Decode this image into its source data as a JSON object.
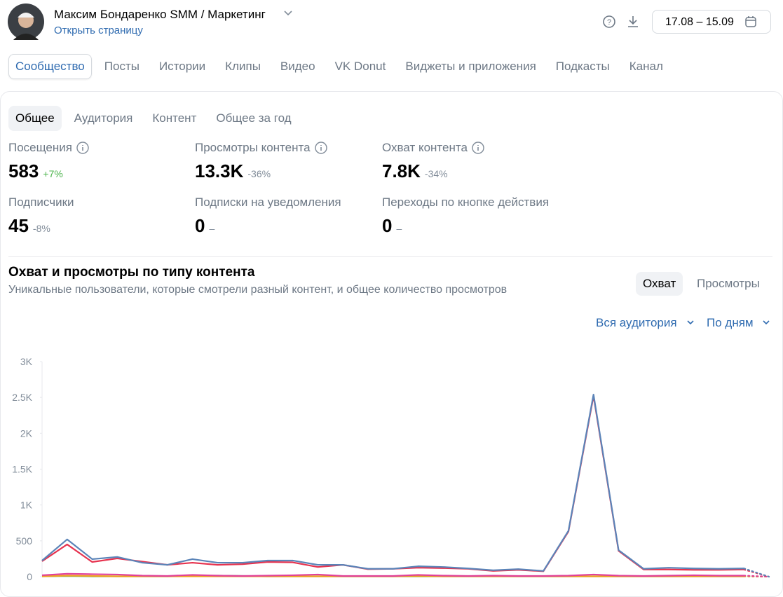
{
  "header": {
    "name": "Максим Бондаренко SMM / Маркетинг",
    "link": "Открыть страницу",
    "date_range": "17.08 – 15.09"
  },
  "tabs": [
    "Сообщество",
    "Посты",
    "Истории",
    "Клипы",
    "Видео",
    "VK Donut",
    "Виджеты и приложения",
    "Подкасты",
    "Канал"
  ],
  "subtabs": [
    "Общее",
    "Аудитория",
    "Контент",
    "Общее за год"
  ],
  "metrics": [
    {
      "label": "Посещения",
      "value": "583",
      "change": "+7%"
    },
    {
      "label": "Просмотры контента",
      "value": "13.3K",
      "change": "-36%"
    },
    {
      "label": "Охват контента",
      "value": "7.8K",
      "change": "-34%"
    },
    {
      "label": "Подписчики",
      "value": "45",
      "change": "-8%"
    },
    {
      "label": "Подписки на уведомления",
      "value": "0",
      "change": "–"
    },
    {
      "label": "Переходы по кнопке действия",
      "value": "0",
      "change": "–"
    }
  ],
  "section": {
    "title": "Охват и просмотры по типу контента",
    "subtitle": "Уникальные пользователи, которые смотрели разный контент, и общее количество просмотров",
    "toggles": [
      "Охват",
      "Просмотры"
    ],
    "filters": [
      "Вся аудитория",
      "По дням"
    ]
  },
  "chart_data": {
    "type": "line",
    "categories": [
      null,
      null,
      null,
      null,
      null,
      null,
      null,
      null,
      null,
      null,
      null,
      null,
      null,
      null,
      null,
      null,
      null,
      null,
      null,
      null,
      null,
      null,
      null,
      null,
      null,
      null,
      null,
      null,
      null,
      null
    ],
    "series": [
      {
        "color": "#5b84b8",
        "values": [
          225,
          520,
          245,
          275,
          195,
          165,
          245,
          195,
          195,
          225,
          225,
          165,
          165,
          110,
          110,
          145,
          135,
          115,
          90,
          105,
          80,
          640,
          2540,
          370,
          110,
          125,
          115,
          110,
          115,
          0
        ]
      },
      {
        "color": "#e6334f",
        "values": [
          215,
          450,
          205,
          255,
          210,
          165,
          195,
          165,
          175,
          205,
          200,
          135,
          165,
          105,
          110,
          125,
          120,
          110,
          80,
          95,
          75,
          630,
          2520,
          360,
          100,
          100,
          95,
          95,
          100,
          0
        ]
      },
      {
        "color": "#e0409a",
        "values": [
          20,
          40,
          35,
          30,
          15,
          10,
          25,
          15,
          10,
          15,
          20,
          30,
          10,
          10,
          10,
          25,
          15,
          10,
          15,
          10,
          10,
          15,
          30,
          15,
          10,
          15,
          20,
          15,
          15,
          0
        ]
      },
      {
        "color": "#f0a020",
        "values": [
          5,
          15,
          10,
          5,
          5,
          5,
          5,
          5,
          5,
          5,
          5,
          5,
          5,
          5,
          5,
          10,
          5,
          5,
          5,
          5,
          5,
          5,
          5,
          5,
          5,
          5,
          5,
          5,
          5,
          0
        ]
      },
      {
        "color": "#4caf50",
        "values": [
          5,
          10,
          5,
          5,
          5,
          5,
          10,
          15,
          10,
          5,
          5,
          5,
          5,
          5,
          5,
          5,
          5,
          5,
          5,
          5,
          5,
          5,
          5,
          5,
          5,
          5,
          5,
          5,
          5,
          0
        ]
      }
    ],
    "ylim": [
      0,
      3000
    ],
    "yticks": [
      0,
      500,
      {
        "value": 1000,
        "label": "1K"
      },
      {
        "value": 1500,
        "label": "1.5K"
      },
      {
        "value": 2000,
        "label": "2K"
      },
      {
        "value": 2500,
        "label": "2.5K"
      },
      {
        "value": 3000,
        "label": "3K"
      }
    ]
  }
}
